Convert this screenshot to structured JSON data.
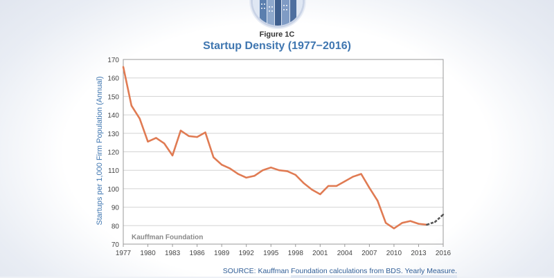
{
  "figure_label": "Figure 1C",
  "source_note": "SOURCE: Kauffman Foundation calculations from BDS. Yearly Measure.",
  "watermark": "Kauffman Foundation",
  "icons": {
    "logo": "city-buildings-logo"
  },
  "colors": {
    "line": "#e07b53",
    "line_tail": "#555555",
    "title": "#3f76b0",
    "ylabel": "#3f76b0",
    "grid": "#d3d3d3",
    "axis": "#999999"
  },
  "chart_data": {
    "type": "line",
    "title": "Startup Density (1977−2016)",
    "xlabel": "",
    "ylabel": "Startups per 1,000 Firm Population (Annual)",
    "xlim": [
      1977,
      2016
    ],
    "ylim": [
      70,
      170
    ],
    "xticks": [
      1977,
      1980,
      1983,
      1986,
      1989,
      1992,
      1995,
      1998,
      2001,
      2004,
      2007,
      2010,
      2013,
      2016
    ],
    "yticks": [
      70,
      80,
      90,
      100,
      110,
      120,
      130,
      140,
      150,
      160,
      170
    ],
    "grid": true,
    "legend": "none",
    "series": [
      {
        "x": [
          1977,
          1978,
          1979,
          1980,
          1981,
          1982,
          1983,
          1984,
          1985,
          1986,
          1987,
          1988,
          1989,
          1990,
          1991,
          1992,
          1993,
          1994,
          1995,
          1996,
          1997,
          1998,
          1999,
          2000,
          2001,
          2002,
          2003,
          2004,
          2005,
          2006,
          2007,
          2008,
          2009,
          2010,
          2011,
          2012,
          2013,
          2014,
          2015,
          2016
        ],
        "values": [
          166,
          145,
          138,
          125.5,
          127.5,
          124.5,
          118,
          131.5,
          128.5,
          128,
          130.5,
          117,
          113,
          111,
          108,
          106,
          107,
          110,
          111.5,
          110,
          109.5,
          107.5,
          103,
          99.5,
          97,
          101.5,
          101.5,
          104,
          106.5,
          108,
          100.5,
          93.5,
          81.5,
          78.5,
          81.5,
          82.5,
          81,
          80.5,
          82,
          86
        ]
      }
    ],
    "highlight_from_x": 2014
  }
}
